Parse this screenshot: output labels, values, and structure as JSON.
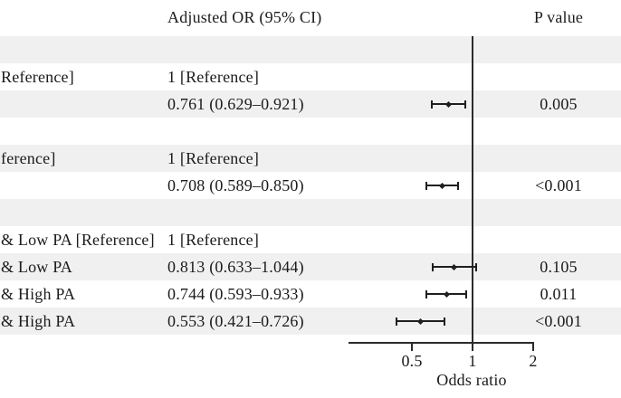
{
  "figure": {
    "columns": {
      "or_header": "Adjusted OR (95% CI)",
      "p_header": "P value"
    },
    "axis": {
      "label": "Odds ratio",
      "ticks": [
        "0.5",
        "1",
        "2"
      ],
      "tick_values": [
        0.5,
        1,
        2
      ],
      "scale": "log",
      "reference_value": 1
    },
    "colors": {
      "band": "#f0f0f0",
      "text": "#1b1b1b",
      "line": "#2b2b2b"
    },
    "rows": [
      {
        "shaded": true,
        "label": "",
        "or": "",
        "p": ""
      },
      {
        "shaded": false,
        "label": "Reference]",
        "or": "1 [Reference]",
        "p": ""
      },
      {
        "shaded": true,
        "label": "",
        "or": "0.761 (0.629–0.921)",
        "p": "0.005",
        "est": 0.761,
        "lo": 0.629,
        "hi": 0.921
      },
      {
        "shaded": false,
        "label": "",
        "or": "",
        "p": ""
      },
      {
        "shaded": true,
        "label": "ference]",
        "or": "1 [Reference]",
        "p": ""
      },
      {
        "shaded": false,
        "label": "",
        "or": "0.708 (0.589–0.850)",
        "p": "<0.001",
        "est": 0.708,
        "lo": 0.589,
        "hi": 0.85
      },
      {
        "shaded": true,
        "label": "",
        "or": "",
        "p": ""
      },
      {
        "shaded": false,
        "label": "& Low PA [Reference]",
        "or": "1 [Reference]",
        "p": ""
      },
      {
        "shaded": true,
        "label": "& Low PA",
        "or": "0.813 (0.633–1.044)",
        "p": "0.105",
        "est": 0.813,
        "lo": 0.633,
        "hi": 1.044
      },
      {
        "shaded": false,
        "label": "& High PA",
        "or": "0.744 (0.593–0.933)",
        "p": "0.011",
        "est": 0.744,
        "lo": 0.593,
        "hi": 0.933
      },
      {
        "shaded": true,
        "label": "& High PA",
        "or": "0.553 (0.421–0.726)",
        "p": "<0.001",
        "est": 0.553,
        "lo": 0.421,
        "hi": 0.726
      }
    ]
  },
  "chart_data": {
    "type": "scatter",
    "variant": "forest_plot",
    "title": "Adjusted OR (95% CI)",
    "xlabel": "Odds ratio",
    "x_scale": "log",
    "x_ticks": [
      0.5,
      1,
      2
    ],
    "x_range": [
      0.25,
      2.1
    ],
    "reference_line": 1.0,
    "grid": false,
    "legend_position": "none",
    "series": [
      {
        "name": "Adjusted OR",
        "points": [
          {
            "label": "Reference]",
            "estimate": 1.0,
            "reference": true,
            "p_value": ""
          },
          {
            "label": "",
            "estimate": 0.761,
            "ci_low": 0.629,
            "ci_high": 0.921,
            "p_value": "0.005"
          },
          {
            "label": "ference]",
            "estimate": 1.0,
            "reference": true,
            "p_value": ""
          },
          {
            "label": "",
            "estimate": 0.708,
            "ci_low": 0.589,
            "ci_high": 0.85,
            "p_value": "<0.001"
          },
          {
            "label": "& Low PA [Reference]",
            "estimate": 1.0,
            "reference": true,
            "p_value": ""
          },
          {
            "label": "& Low PA",
            "estimate": 0.813,
            "ci_low": 0.633,
            "ci_high": 1.044,
            "p_value": "0.105"
          },
          {
            "label": "& High PA",
            "estimate": 0.744,
            "ci_low": 0.593,
            "ci_high": 0.933,
            "p_value": "0.011"
          },
          {
            "label": "& High PA",
            "estimate": 0.553,
            "ci_low": 0.421,
            "ci_high": 0.726,
            "p_value": "<0.001"
          }
        ]
      }
    ]
  }
}
